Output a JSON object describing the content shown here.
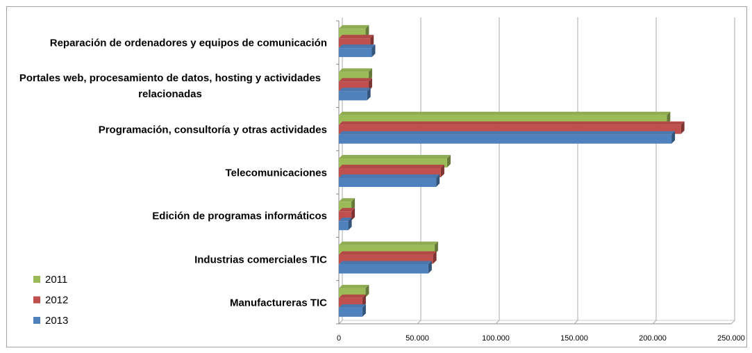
{
  "chart_data": {
    "type": "bar",
    "orientation": "horizontal",
    "categories": [
      "Reparación de ordenadores y equipos de comunicación",
      "Portales web, procesamiento de datos, hosting y actividades relacionadas",
      "Programación, consultoría y otras actividades",
      "Telecomunicaciones",
      "Edición de programas informáticos",
      "Industrias comerciales TIC",
      "Manufactureras TIC"
    ],
    "series": [
      {
        "name": "2011",
        "color": "#9bbb59",
        "values": [
          17000,
          19000,
          209000,
          69000,
          8000,
          61000,
          17000
        ]
      },
      {
        "name": "2012",
        "color": "#c0504d",
        "values": [
          20000,
          19000,
          218000,
          65000,
          8000,
          60000,
          15000
        ]
      },
      {
        "name": "2013",
        "color": "#4f81bd",
        "values": [
          21000,
          18000,
          212000,
          62000,
          6000,
          57000,
          15000
        ]
      }
    ],
    "xlim": [
      0,
      250000
    ],
    "xticks": [
      0,
      {
        "value": 50000,
        "label": "50.000"
      },
      {
        "value": 100000,
        "label": "100.000"
      },
      {
        "value": 150000,
        "label": "150.000"
      },
      {
        "value": 200000,
        "label": "200.000"
      },
      {
        "value": 250000,
        "label": "250.000"
      }
    ],
    "grid": true,
    "legend": "lower-left",
    "three_d": true
  }
}
